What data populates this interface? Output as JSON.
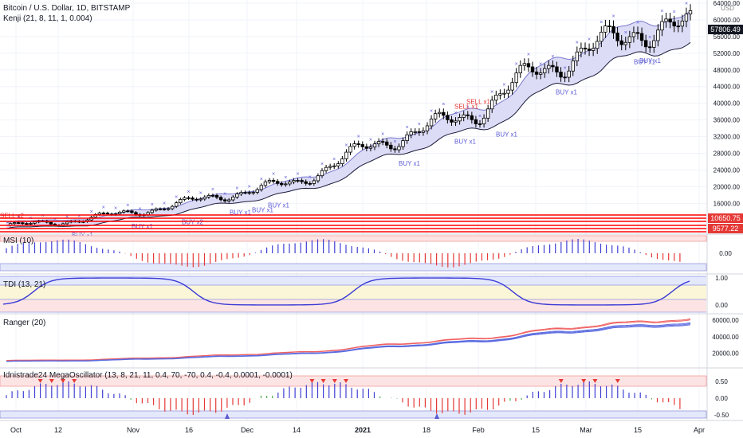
{
  "header": {
    "symbol_title": "Bitcoin / U.S. Dollar, 1D, BITSTAMP",
    "overlay_indicator": "Kenji (21, 8, 11, 1, 0.004)"
  },
  "price_axis": {
    "currency": "USD",
    "ticks": [
      "64000.00",
      "60000.00",
      "56000.00",
      "52000.00",
      "48000.00",
      "44000.00",
      "40000.00",
      "36000.00",
      "32000.00",
      "28000.00",
      "24000.00",
      "20000.00",
      "16000.00",
      "12000.00"
    ],
    "last_price": "57806.49",
    "red_tag_1": "10650.75",
    "red_tag_2": "9577.22"
  },
  "panes": {
    "msi": {
      "title": "MSI (10)",
      "ticks": [
        "0.00"
      ]
    },
    "tdi": {
      "title": "TDI (13, 21)",
      "ticks": [
        "1.00",
        "0.00"
      ]
    },
    "ranger": {
      "title": "Ranger (20)",
      "ticks": [
        "60000.00",
        "40000.00",
        "20000.00"
      ]
    },
    "mega": {
      "title": "Idnistrade24 MegaOscillator (13, 8, 21, 11, 0.4, 70, -70, 0.4, -0.4, 0.0001, -0.0001)",
      "ticks": [
        "0.50",
        "0.00",
        "-0.50"
      ]
    }
  },
  "signals": {
    "buy_labels": [
      "BUY x1",
      "BUY x1",
      "BUY x2",
      "BUY x1",
      "BUY x1",
      "BUY x1",
      "BUY x1",
      "BUY x1",
      "BUY x1",
      "BUY x1",
      "BUY x1",
      "BUY x1"
    ],
    "sell_labels": [
      "SELL x2",
      "SELL x1",
      "SELL x1"
    ]
  },
  "time_axis": {
    "labels": [
      "Oct",
      "12",
      "Nov",
      "16",
      "Dec",
      "14",
      "2021",
      "18",
      "Feb",
      "15",
      "Mar",
      "15",
      "Apr"
    ]
  },
  "colors": {
    "up_candle": "#ffffff",
    "down_candle": "#000000",
    "band_fill": "#dcdcf6",
    "band_line": "#1a1a3a",
    "buy_text": "#5b5bd6",
    "sell_text": "#e53935",
    "red_line": "#ff0000",
    "msi_up": "#3f3fd4",
    "msi_down": "#e53935",
    "tdi_line": "#3a3ad6",
    "ranger_red": "#f06060",
    "ranger_blue": "#5b6be0"
  },
  "chart_data": {
    "type": "line",
    "title": "Bitcoin / U.S. Dollar, 1D, BITSTAMP",
    "xlabel": "",
    "ylabel": "USD",
    "x": [
      "Oct",
      "12",
      "Nov",
      "16",
      "Dec",
      "14",
      "2021",
      "18",
      "Feb",
      "15",
      "Mar",
      "15"
    ],
    "series": [
      {
        "name": "close",
        "values": [
          10700,
          11500,
          13800,
          16300,
          19000,
          21000,
          29000,
          34000,
          38000,
          48000,
          52000,
          57800
        ]
      }
    ],
    "ylim": [
      9000,
      64000
    ]
  }
}
